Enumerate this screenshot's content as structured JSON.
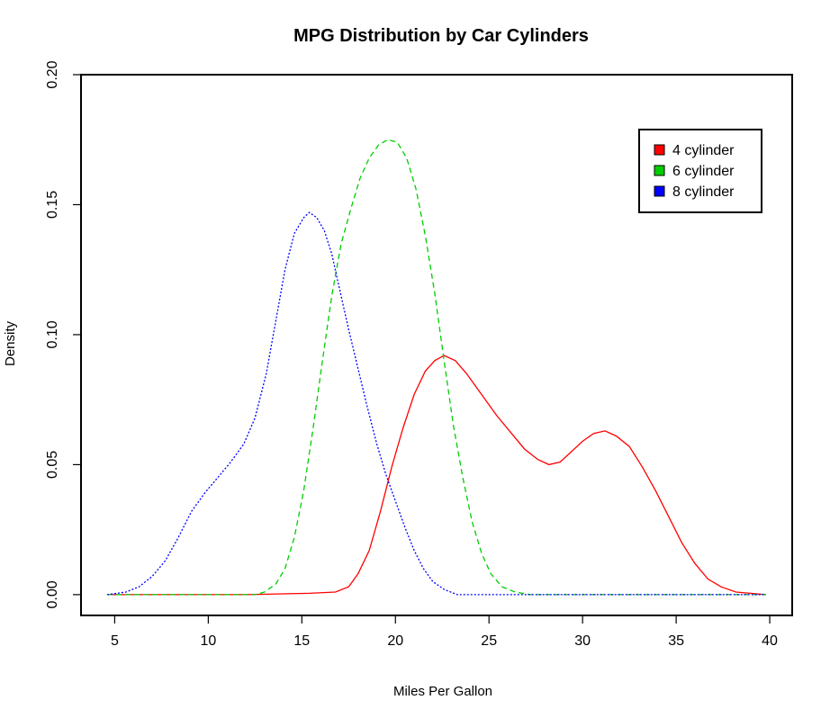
{
  "chart_data": {
    "type": "line",
    "title": "MPG Distribution by Car Cylinders",
    "xlabel": "Miles Per Gallon",
    "ylabel": "Density",
    "xlim": [
      3.2,
      41.2
    ],
    "ylim": [
      -0.008,
      0.2
    ],
    "x_ticks": [
      5,
      10,
      15,
      20,
      25,
      30,
      35,
      40
    ],
    "x_tick_labels": [
      "5",
      "10",
      "15",
      "20",
      "25",
      "30",
      "35",
      "40"
    ],
    "y_ticks": [
      0.0,
      0.05,
      0.1,
      0.15,
      0.2
    ],
    "y_tick_labels": [
      "0.00",
      "0.05",
      "0.10",
      "0.15",
      "0.20"
    ],
    "grid": false,
    "legend_position": "top-right",
    "series": [
      {
        "name": "4 cylinder",
        "color": "#FF0000",
        "line_style": "solid",
        "points": [
          [
            4.6,
            0.0
          ],
          [
            12.0,
            0.0
          ],
          [
            15.4,
            0.0005
          ],
          [
            16.8,
            0.001
          ],
          [
            17.5,
            0.003
          ],
          [
            18.0,
            0.008
          ],
          [
            18.6,
            0.017
          ],
          [
            19.2,
            0.032
          ],
          [
            19.8,
            0.049
          ],
          [
            20.4,
            0.064
          ],
          [
            21.0,
            0.077
          ],
          [
            21.6,
            0.086
          ],
          [
            22.1,
            0.09
          ],
          [
            22.6,
            0.092
          ],
          [
            23.2,
            0.09
          ],
          [
            23.8,
            0.085
          ],
          [
            24.6,
            0.077
          ],
          [
            25.4,
            0.069
          ],
          [
            26.2,
            0.062
          ],
          [
            26.9,
            0.056
          ],
          [
            27.6,
            0.052
          ],
          [
            28.2,
            0.05
          ],
          [
            28.8,
            0.051
          ],
          [
            29.4,
            0.055
          ],
          [
            30.0,
            0.059
          ],
          [
            30.6,
            0.062
          ],
          [
            31.2,
            0.063
          ],
          [
            31.8,
            0.061
          ],
          [
            32.5,
            0.057
          ],
          [
            33.2,
            0.049
          ],
          [
            33.9,
            0.04
          ],
          [
            34.6,
            0.03
          ],
          [
            35.3,
            0.02
          ],
          [
            36.0,
            0.012
          ],
          [
            36.7,
            0.006
          ],
          [
            37.4,
            0.003
          ],
          [
            38.2,
            0.001
          ],
          [
            39.8,
            0.0
          ]
        ]
      },
      {
        "name": "6 cylinder",
        "color": "#00CD00",
        "line_style": "dashed",
        "points": [
          [
            4.6,
            0.0
          ],
          [
            10.0,
            0.0
          ],
          [
            12.5,
            0.0
          ],
          [
            13.0,
            0.001
          ],
          [
            13.6,
            0.004
          ],
          [
            14.1,
            0.01
          ],
          [
            14.6,
            0.022
          ],
          [
            15.1,
            0.04
          ],
          [
            15.6,
            0.064
          ],
          [
            16.1,
            0.09
          ],
          [
            16.6,
            0.115
          ],
          [
            17.1,
            0.135
          ],
          [
            17.6,
            0.148
          ],
          [
            18.1,
            0.16
          ],
          [
            18.6,
            0.168
          ],
          [
            19.1,
            0.173
          ],
          [
            19.6,
            0.175
          ],
          [
            20.1,
            0.174
          ],
          [
            20.6,
            0.168
          ],
          [
            21.1,
            0.156
          ],
          [
            21.6,
            0.138
          ],
          [
            22.1,
            0.116
          ],
          [
            22.6,
            0.09
          ],
          [
            23.1,
            0.065
          ],
          [
            23.6,
            0.045
          ],
          [
            24.1,
            0.028
          ],
          [
            24.6,
            0.016
          ],
          [
            25.1,
            0.008
          ],
          [
            25.7,
            0.003
          ],
          [
            26.4,
            0.001
          ],
          [
            27.2,
            0.0
          ],
          [
            39.8,
            0.0
          ]
        ]
      },
      {
        "name": "8 cylinder",
        "color": "#0000FF",
        "line_style": "dotted",
        "points": [
          [
            4.6,
            0.0
          ],
          [
            5.6,
            0.001
          ],
          [
            6.3,
            0.003
          ],
          [
            7.0,
            0.007
          ],
          [
            7.7,
            0.013
          ],
          [
            8.4,
            0.022
          ],
          [
            9.1,
            0.032
          ],
          [
            9.8,
            0.039
          ],
          [
            10.5,
            0.045
          ],
          [
            11.2,
            0.051
          ],
          [
            11.9,
            0.058
          ],
          [
            12.5,
            0.068
          ],
          [
            13.1,
            0.085
          ],
          [
            13.6,
            0.105
          ],
          [
            14.1,
            0.125
          ],
          [
            14.6,
            0.139
          ],
          [
            15.1,
            0.145
          ],
          [
            15.4,
            0.147
          ],
          [
            15.8,
            0.145
          ],
          [
            16.2,
            0.14
          ],
          [
            16.6,
            0.131
          ],
          [
            17.0,
            0.118
          ],
          [
            17.5,
            0.102
          ],
          [
            18.0,
            0.087
          ],
          [
            18.5,
            0.072
          ],
          [
            19.0,
            0.058
          ],
          [
            19.5,
            0.046
          ],
          [
            20.0,
            0.036
          ],
          [
            20.5,
            0.026
          ],
          [
            21.0,
            0.017
          ],
          [
            21.5,
            0.01
          ],
          [
            22.0,
            0.005
          ],
          [
            22.6,
            0.002
          ],
          [
            23.3,
            0.0
          ],
          [
            39.8,
            0.0
          ]
        ]
      }
    ]
  }
}
